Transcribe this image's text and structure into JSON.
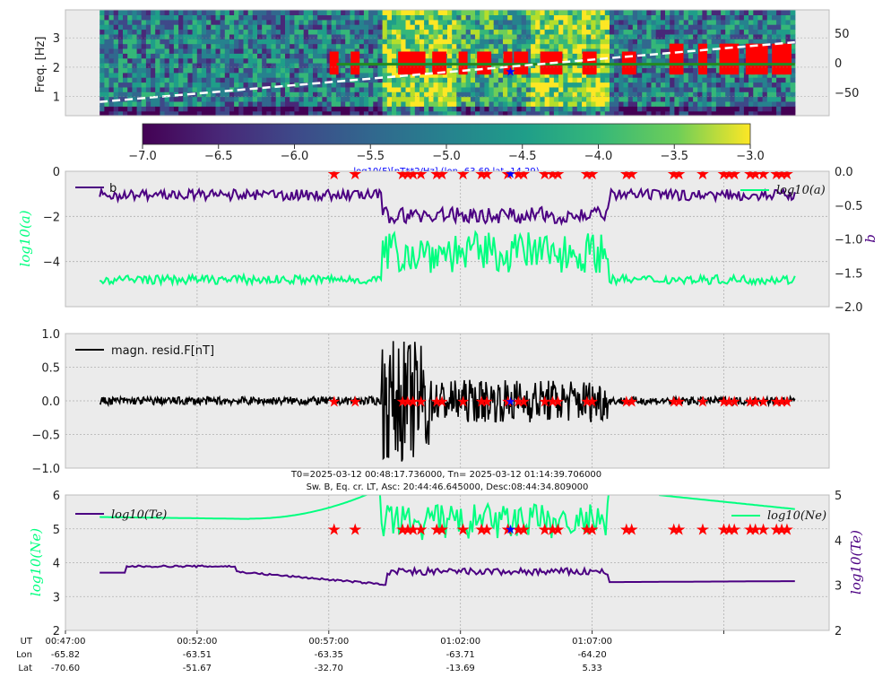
{
  "colors": {
    "panel_bg": "#ebebeb",
    "grid": "#b0b0b0",
    "green": "#00ff7f",
    "indigo": "#4b0082",
    "red": "#ff0000",
    "blue": "#0000ff",
    "black": "#000000",
    "white_dashed": "#ffffff",
    "dark_green": "#228b22"
  },
  "chart_data": [
    {
      "type": "heatmap",
      "ylabel": "Freq. [Hz]",
      "ylim": [
        0.35,
        3.95
      ],
      "yticks": [
        "1",
        "2",
        "3"
      ],
      "right_yticks": [
        "50",
        "0",
        "−50"
      ],
      "right_ylim": [
        -90,
        90
      ],
      "colorbar": {
        "vmin": -7.0,
        "vmax": -3.0,
        "ticks": [
          "−7.0",
          "−6.5",
          "−6.0",
          "−5.5",
          "−5.0",
          "−4.5",
          "−4.0",
          "−3.5",
          "−3.0"
        ],
        "label": "log10(F)[nT**2/Hz] (lon -63.69,lat -14.29)"
      },
      "dashed_line": {
        "y_start": 0.82,
        "y_end": 2.85
      },
      "green_line_level": 2.1
    },
    {
      "type": "line",
      "ylabel_left": "log10(a)",
      "ylabel_right": "b",
      "ylim_left": [
        -6,
        0
      ],
      "ylim_right": [
        -2.0,
        0.0
      ],
      "yticks_left": [
        "0",
        "−2",
        "−4"
      ],
      "yticks_right": [
        "0.0",
        "−0.5",
        "−1.0",
        "−1.5",
        "−2.0"
      ],
      "legend": [
        "b",
        "log10(a)"
      ],
      "series": [
        {
          "name": "log10(a)",
          "baseline": -4.8,
          "event_level": -3.6
        },
        {
          "name": "b",
          "baseline": -0.35,
          "event_level": -0.65
        }
      ]
    },
    {
      "type": "line",
      "ylim": [
        -1.0,
        1.0
      ],
      "yticks": [
        "1.0",
        "0.5",
        "0.0",
        "−0.5",
        "−1.0"
      ],
      "legend": [
        "magn. resid.F[nT]"
      ],
      "annotation_1": "T0=2025-03-12 00:48:17.736000, Tn= 2025-03-12 01:14:39.706000",
      "annotation_2": "Sw. B, Eq. cr. LT, Asc: 20:44:46.645000, Desc:08:44:34.809000"
    },
    {
      "type": "line",
      "ylabel_left": "log10(Ne)",
      "ylabel_right": "log10(Te)",
      "ylim_left": [
        2,
        6
      ],
      "ylim_right": [
        2,
        5
      ],
      "yticks_left": [
        "6",
        "5",
        "4",
        "3",
        "2"
      ],
      "yticks_right": [
        "5",
        "4",
        "3",
        "2"
      ],
      "legend": [
        "log10(Te)",
        "log10(Ne)"
      ]
    }
  ],
  "time_axis": {
    "labels": [
      "00:47:00",
      "00:52:00",
      "00:57:00",
      "01:02:00",
      "01:07:00"
    ],
    "start_minute": 0,
    "end_minute": 29,
    "data_start": 1.3,
    "data_end": 27.7,
    "rows": [
      {
        "label": "UT",
        "values": [
          "00:47:00",
          "00:52:00",
          "00:57:00",
          "01:02:00",
          "01:07:00"
        ]
      },
      {
        "label": "Lon",
        "values": [
          "-65.82",
          "-63.51",
          "-63.35",
          "-63.71",
          "-64.20"
        ]
      },
      {
        "label": "Lat",
        "values": [
          "-70.60",
          "-51.67",
          "-32.70",
          "-13.69",
          "5.33"
        ]
      }
    ]
  },
  "markers_minutes": [
    10.2,
    11.0,
    12.8,
    13.0,
    13.2,
    13.5,
    14.1,
    14.3,
    15.1,
    15.8,
    16.0,
    16.8,
    17.2,
    17.4,
    18.2,
    18.5,
    18.7,
    19.8,
    20.0,
    21.3,
    21.5,
    23.1,
    23.3,
    24.2,
    25.0,
    25.2,
    25.4,
    26.0,
    26.2,
    26.5,
    27.0,
    27.2,
    27.4
  ],
  "blue_marker_minute": 16.9
}
